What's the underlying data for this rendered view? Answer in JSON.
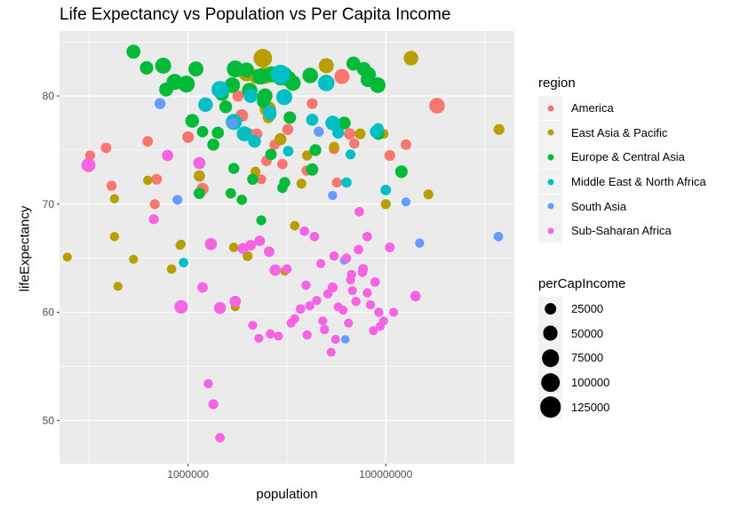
{
  "chart_data": {
    "type": "scatter",
    "title": "Life Expectancy vs Population vs Per Capita Income",
    "xlabel": "population",
    "ylabel": "lifeExpectancy",
    "x_scale": "log10",
    "xlim": [
      50000,
      2000000000
    ],
    "ylim": [
      46,
      86
    ],
    "x_ticks": [
      1000000,
      100000000
    ],
    "x_tick_labels": [
      "1000000",
      "100000000"
    ],
    "y_ticks": [
      50,
      60,
      70,
      80
    ],
    "y_tick_labels": [
      "50",
      "60",
      "70",
      "80"
    ],
    "grid": true,
    "legend_position": "right",
    "color_legend": {
      "title": "region",
      "entries": [
        {
          "label": "America",
          "color": "#F8766D"
        },
        {
          "label": "East Asia & Pacific",
          "color": "#B79F00"
        },
        {
          "label": "Europe & Central Asia",
          "color": "#00BA38"
        },
        {
          "label": "Middle East & North Africa",
          "color": "#00BFC4"
        },
        {
          "label": "South Asia",
          "color": "#619CFF"
        },
        {
          "label": "Sub-Saharan Africa",
          "color": "#F564E3"
        }
      ]
    },
    "size_legend": {
      "title": "perCapIncome",
      "entries": [
        {
          "label": "25000",
          "value": 25000
        },
        {
          "label": "50000",
          "value": 50000
        },
        {
          "label": "75000",
          "value": 75000
        },
        {
          "label": "100000",
          "value": 100000
        },
        {
          "label": "125000",
          "value": 125000
        }
      ]
    },
    "series": [
      {
        "name": "America",
        "points": [
          [
            102000,
            74.5,
            12000
          ],
          [
            148000,
            75.2,
            15000
          ],
          [
            168000,
            71.7,
            13000
          ],
          [
            390000,
            75.8,
            15000
          ],
          [
            480000,
            72.3,
            16000
          ],
          [
            460000,
            70.0,
            12000
          ],
          [
            1000000,
            76.2,
            22000
          ],
          [
            1400000,
            71.4,
            25000
          ],
          [
            3500000,
            78.2,
            28000
          ],
          [
            4200000,
            76.5,
            16000
          ],
          [
            5500000,
            72.3,
            12000
          ],
          [
            6200000,
            74.0,
            15000
          ],
          [
            7500000,
            75.5,
            14000
          ],
          [
            9000000,
            73.7,
            14000
          ],
          [
            10200000,
            76.9,
            18000
          ],
          [
            15800000,
            73.1,
            13000
          ],
          [
            18000000,
            79.3,
            17000
          ],
          [
            30000000,
            75.1,
            15000
          ],
          [
            36000000,
            81.8,
            50000
          ],
          [
            43000000,
            76.5,
            20000
          ],
          [
            48000000,
            75.6,
            13000
          ],
          [
            32000000,
            72.0,
            12000
          ],
          [
            110000000,
            74.5,
            17000
          ],
          [
            160000000,
            75.5,
            15000
          ],
          [
            330000000,
            79.1,
            55000
          ],
          [
            3200000,
            80.0,
            20000
          ],
          [
            5000000,
            76.5,
            15000
          ]
        ]
      },
      {
        "name": "East Asia & Pacific",
        "points": [
          [
            60000,
            65.1,
            8000
          ],
          [
            180000,
            70.5,
            9000
          ],
          [
            195000,
            62.4,
            8000
          ],
          [
            180000,
            67.0,
            9000
          ],
          [
            280000,
            64.9,
            8000
          ],
          [
            390000,
            72.2,
            9000
          ],
          [
            5700000,
            83.5,
            90000
          ],
          [
            4900000,
            81.8,
            45000
          ],
          [
            8600000,
            76.0,
            25000
          ],
          [
            6500000,
            78.0,
            20000
          ],
          [
            1300000,
            72.6,
            20000
          ],
          [
            850000,
            66.3,
            8000
          ],
          [
            3900000,
            82.1,
            60000
          ],
          [
            25000000,
            82.8,
            50000
          ],
          [
            12000000,
            68.0,
            10000
          ],
          [
            16000000,
            74.5,
            13000
          ],
          [
            30000000,
            75.3,
            13000
          ],
          [
            55000000,
            76.5,
            17000
          ],
          [
            95000000,
            76.5,
            12000
          ],
          [
            180000000,
            83.5,
            45000
          ],
          [
            270000000,
            70.9,
            12000
          ],
          [
            1400000000,
            76.9,
            17000
          ],
          [
            100000000,
            70.0,
            12000
          ],
          [
            9500000,
            63.8,
            8000
          ],
          [
            4000000,
            65.2,
            12000
          ],
          [
            2900000,
            66.0,
            10000
          ],
          [
            4800000,
            73.0,
            12000
          ],
          [
            14000000,
            71.9,
            12000
          ],
          [
            680000,
            64.0,
            10000
          ],
          [
            830000,
            66.2,
            9000
          ],
          [
            6000000,
            81.9,
            70000
          ],
          [
            6400000,
            78.8,
            60000
          ],
          [
            3000000,
            60.5,
            8000
          ]
        ]
      },
      {
        "name": "Europe & Central Asia",
        "points": [
          [
            280000,
            84.1,
            40000
          ],
          [
            380000,
            82.6,
            35000
          ],
          [
            560000,
            82.8,
            60000
          ],
          [
            730000,
            81.3,
            60000
          ],
          [
            960000,
            81.1,
            70000
          ],
          [
            1200000,
            82.5,
            50000
          ],
          [
            1400000,
            76.7,
            20000
          ],
          [
            1800000,
            75.5,
            25000
          ],
          [
            2200000,
            80.2,
            40000
          ],
          [
            2800000,
            81.0,
            55000
          ],
          [
            3000000,
            82.5,
            70000
          ],
          [
            3900000,
            82.4,
            50000
          ],
          [
            4200000,
            80.5,
            55000
          ],
          [
            5400000,
            81.8,
            60000
          ],
          [
            6000000,
            80.0,
            50000
          ],
          [
            7000000,
            82.0,
            60000
          ],
          [
            8600000,
            81.7,
            55000
          ],
          [
            9400000,
            82.0,
            50000
          ],
          [
            10300000,
            81.6,
            60000
          ],
          [
            11500000,
            81.2,
            55000
          ],
          [
            17200000,
            81.9,
            55000
          ],
          [
            1300000,
            71.0,
            20000
          ],
          [
            2000000,
            76.6,
            25000
          ],
          [
            2900000,
            73.3,
            18000
          ],
          [
            3500000,
            70.4,
            14000
          ],
          [
            4500000,
            72.3,
            18000
          ],
          [
            6900000,
            74.6,
            20000
          ],
          [
            9500000,
            72.0,
            18000
          ],
          [
            10700000,
            78.0,
            28000
          ],
          [
            19400000,
            75.0,
            23000
          ],
          [
            38000000,
            77.5,
            30000
          ],
          [
            47000000,
            83.0,
            40000
          ],
          [
            66000000,
            81.5,
            45000
          ],
          [
            67000000,
            82.0,
            45000
          ],
          [
            83000000,
            81.0,
            55000
          ],
          [
            84000000,
            76.5,
            25000
          ],
          [
            144000000,
            73.0,
            28000
          ],
          [
            60000000,
            82.5,
            40000
          ],
          [
            2700000,
            71.0,
            15000
          ],
          [
            9000000,
            71.5,
            14000
          ],
          [
            5500000,
            68.5,
            12000
          ],
          [
            18000000,
            73.2,
            26000
          ],
          [
            1100000,
            77.7,
            38000
          ],
          [
            600000,
            80.6,
            40000
          ],
          [
            5800000,
            79.5,
            35000
          ],
          [
            2400000,
            79.0,
            30000
          ]
        ]
      },
      {
        "name": "Middle East & North Africa",
        "points": [
          [
            900000,
            64.6,
            10000
          ],
          [
            1500000,
            79.2,
            45000
          ],
          [
            2100000,
            80.6,
            70000
          ],
          [
            2900000,
            77.6,
            60000
          ],
          [
            3700000,
            76.5,
            50000
          ],
          [
            4300000,
            80.0,
            40000
          ],
          [
            4700000,
            75.8,
            30000
          ],
          [
            6800000,
            78.3,
            25000
          ],
          [
            8600000,
            82.0,
            100000
          ],
          [
            9400000,
            79.9,
            60000
          ],
          [
            10300000,
            74.9,
            15000
          ],
          [
            18000000,
            77.8,
            25000
          ],
          [
            29000000,
            77.5,
            45000
          ],
          [
            33000000,
            76.6,
            22000
          ],
          [
            40000000,
            72.0,
            14000
          ],
          [
            44000000,
            74.6,
            12000
          ],
          [
            80000000,
            76.7,
            30000
          ],
          [
            84000000,
            77.0,
            16000
          ],
          [
            100000000,
            71.3,
            15000
          ],
          [
            25000000,
            81.2,
            65000
          ],
          [
            6700000,
            78.5,
            35000
          ]
        ]
      },
      {
        "name": "South Asia",
        "points": [
          [
            520000,
            79.3,
            18000
          ],
          [
            780000,
            70.4,
            11000
          ],
          [
            2800000,
            77.5,
            15000
          ],
          [
            21000000,
            76.7,
            13000
          ],
          [
            29000000,
            70.8,
            9000
          ],
          [
            38000000,
            64.8,
            6000
          ],
          [
            39000000,
            57.5,
            6000
          ],
          [
            160000000,
            70.2,
            8000
          ],
          [
            220000000,
            66.4,
            9000
          ],
          [
            1380000000,
            67.0,
            10000
          ]
        ]
      },
      {
        "name": "Sub-Saharan Africa",
        "points": [
          [
            98000,
            73.6,
            40000
          ],
          [
            450000,
            68.6,
            12000
          ],
          [
            620000,
            74.5,
            20000
          ],
          [
            850000,
            60.5,
            35000
          ],
          [
            1300000,
            73.8,
            25000
          ],
          [
            1400000,
            62.3,
            15000
          ],
          [
            1700000,
            66.3,
            25000
          ],
          [
            2100000,
            60.4,
            25000
          ],
          [
            3000000,
            61.0,
            20000
          ],
          [
            3600000,
            65.9,
            18000
          ],
          [
            4300000,
            66.2,
            15000
          ],
          [
            5300000,
            66.6,
            15000
          ],
          [
            6600000,
            65.6,
            15000
          ],
          [
            7600000,
            63.9,
            20000
          ],
          [
            10000000,
            64.0,
            10000
          ],
          [
            13700000,
            60.3,
            10000
          ],
          [
            15600000,
            62.5,
            9000
          ],
          [
            19000000,
            67.0,
            10000
          ],
          [
            22000000,
            64.5,
            8000
          ],
          [
            26000000,
            61.7,
            9000
          ],
          [
            29000000,
            62.3,
            12000
          ],
          [
            33000000,
            60.5,
            8000
          ],
          [
            40000000,
            65.0,
            10000
          ],
          [
            46000000,
            62.0,
            8000
          ],
          [
            53000000,
            65.8,
            10000
          ],
          [
            54000000,
            69.3,
            10000
          ],
          [
            59000000,
            64.0,
            12000
          ],
          [
            85000000,
            60.0,
            9000
          ],
          [
            200000000,
            61.5,
            15000
          ],
          [
            120000000,
            60.0,
            8000
          ],
          [
            110000000,
            66.0,
            11000
          ],
          [
            1800000,
            51.5,
            12000
          ],
          [
            1600000,
            53.4,
            9000
          ],
          [
            2100000,
            48.4,
            10000
          ],
          [
            4500000,
            58.8,
            8000
          ],
          [
            5200000,
            57.6,
            8000
          ],
          [
            6800000,
            58.0,
            9000
          ],
          [
            8200000,
            57.8,
            8000
          ],
          [
            11000000,
            59.0,
            8000
          ],
          [
            12000000,
            59.4,
            8000
          ],
          [
            16000000,
            57.9,
            9000
          ],
          [
            17000000,
            60.6,
            9000
          ],
          [
            20000000,
            61.1,
            9000
          ],
          [
            23000000,
            59.2,
            8000
          ],
          [
            24000000,
            58.4,
            9000
          ],
          [
            28000000,
            56.3,
            8000
          ],
          [
            31000000,
            57.5,
            8000
          ],
          [
            37000000,
            60.2,
            8000
          ],
          [
            42000000,
            59.0,
            8000
          ],
          [
            45000000,
            63.5,
            9000
          ],
          [
            50000000,
            61.0,
            9000
          ],
          [
            58000000,
            63.7,
            10000
          ],
          [
            65000000,
            61.8,
            9000
          ],
          [
            70000000,
            60.7,
            9000
          ],
          [
            75000000,
            58.3,
            8000
          ],
          [
            78000000,
            62.8,
            10000
          ],
          [
            88000000,
            58.7,
            8000
          ],
          [
            95000000,
            59.2,
            8000
          ],
          [
            65000000,
            67.0,
            10000
          ],
          [
            44000000,
            63.0,
            9000
          ],
          [
            30000000,
            65.2,
            9000
          ],
          [
            15000000,
            67.5,
            10000
          ]
        ]
      }
    ]
  }
}
